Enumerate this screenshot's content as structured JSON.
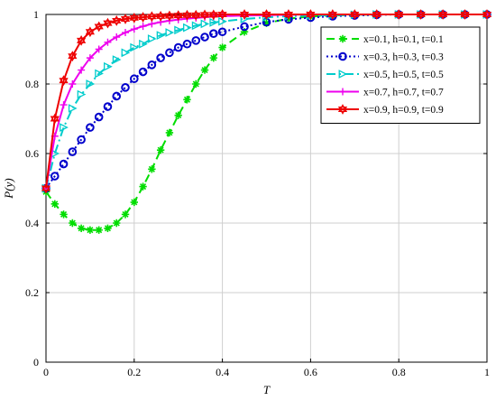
{
  "chart_data": {
    "type": "line",
    "title": "",
    "xlabel": "T",
    "ylabel": "P(y)",
    "xlim": [
      0,
      1
    ],
    "ylim": [
      0,
      1
    ],
    "grid": true,
    "legend_position": "top-right",
    "xticks": [
      {
        "value": 0,
        "label": "0"
      },
      {
        "value": 0.2,
        "label": "0.2"
      },
      {
        "value": 0.4,
        "label": "0.4"
      },
      {
        "value": 0.6,
        "label": "0.6"
      },
      {
        "value": 0.8,
        "label": "0.8"
      },
      {
        "value": 1,
        "label": "1"
      }
    ],
    "yticks": [
      {
        "value": 0,
        "label": "0"
      },
      {
        "value": 0.2,
        "label": "0.2"
      },
      {
        "value": 0.4,
        "label": "0.4"
      },
      {
        "value": 0.6,
        "label": "0.6"
      },
      {
        "value": 0.8,
        "label": "0.8"
      },
      {
        "value": 1,
        "label": "1"
      }
    ],
    "x": [
      0,
      0.02,
      0.04,
      0.06,
      0.08,
      0.1,
      0.12,
      0.14,
      0.16,
      0.18,
      0.2,
      0.22,
      0.24,
      0.26,
      0.28,
      0.3,
      0.32,
      0.34,
      0.36,
      0.38,
      0.4,
      0.45,
      0.5,
      0.55,
      0.6,
      0.65,
      0.7,
      0.75,
      0.8,
      0.85,
      0.9,
      0.95,
      1
    ],
    "series": [
      {
        "name": "x=0.1, h=0.1, t=0.1",
        "color": "#00dd00",
        "dash": "9,5",
        "marker": "asterisk",
        "values": [
          0.49,
          0.455,
          0.425,
          0.4,
          0.385,
          0.38,
          0.38,
          0.385,
          0.4,
          0.425,
          0.46,
          0.505,
          0.555,
          0.61,
          0.66,
          0.71,
          0.755,
          0.8,
          0.84,
          0.875,
          0.905,
          0.95,
          0.975,
          0.988,
          0.994,
          0.997,
          0.999,
          1.0,
          1.0,
          1.0,
          1.0,
          1.0,
          1.0
        ]
      },
      {
        "name": "x=0.3, h=0.3, t=0.3",
        "color": "#0000cc",
        "dash": "2,3",
        "marker": "circle",
        "values": [
          0.5,
          0.535,
          0.57,
          0.605,
          0.64,
          0.675,
          0.705,
          0.735,
          0.765,
          0.79,
          0.815,
          0.835,
          0.855,
          0.875,
          0.89,
          0.905,
          0.915,
          0.925,
          0.935,
          0.945,
          0.95,
          0.965,
          0.978,
          0.986,
          0.991,
          0.995,
          0.997,
          0.999,
          1.0,
          1.0,
          1.0,
          1.0,
          1.0
        ]
      },
      {
        "name": "x=0.5, h=0.5, t=0.5",
        "color": "#00cccc",
        "dash": "10,4,2,4",
        "marker": "triangle-right",
        "values": [
          0.5,
          0.6,
          0.675,
          0.73,
          0.77,
          0.8,
          0.83,
          0.85,
          0.87,
          0.89,
          0.905,
          0.915,
          0.93,
          0.94,
          0.948,
          0.955,
          0.962,
          0.968,
          0.973,
          0.977,
          0.98,
          0.987,
          0.992,
          0.995,
          0.997,
          0.998,
          0.999,
          1.0,
          1.0,
          1.0,
          1.0,
          1.0,
          1.0
        ]
      },
      {
        "name": "x=0.7, h=0.7, t=0.7",
        "color": "#ee00ee",
        "dash": "",
        "marker": "plus",
        "values": [
          0.5,
          0.65,
          0.74,
          0.8,
          0.84,
          0.875,
          0.9,
          0.92,
          0.935,
          0.948,
          0.958,
          0.966,
          0.973,
          0.978,
          0.982,
          0.985,
          0.988,
          0.99,
          0.992,
          0.994,
          0.995,
          0.997,
          0.998,
          0.999,
          1.0,
          1.0,
          1.0,
          1.0,
          1.0,
          1.0,
          1.0,
          1.0,
          1.0
        ]
      },
      {
        "name": "x=0.9, h=0.9, t=0.9",
        "color": "#ee0000",
        "dash": "",
        "marker": "hexagram",
        "values": [
          0.5,
          0.7,
          0.81,
          0.88,
          0.925,
          0.95,
          0.965,
          0.975,
          0.982,
          0.987,
          0.99,
          0.992,
          0.994,
          0.995,
          0.996,
          0.997,
          0.998,
          0.998,
          0.999,
          0.999,
          1.0,
          1.0,
          1.0,
          1.0,
          1.0,
          1.0,
          1.0,
          1.0,
          1.0,
          1.0,
          1.0,
          1.0,
          1.0
        ]
      }
    ]
  }
}
